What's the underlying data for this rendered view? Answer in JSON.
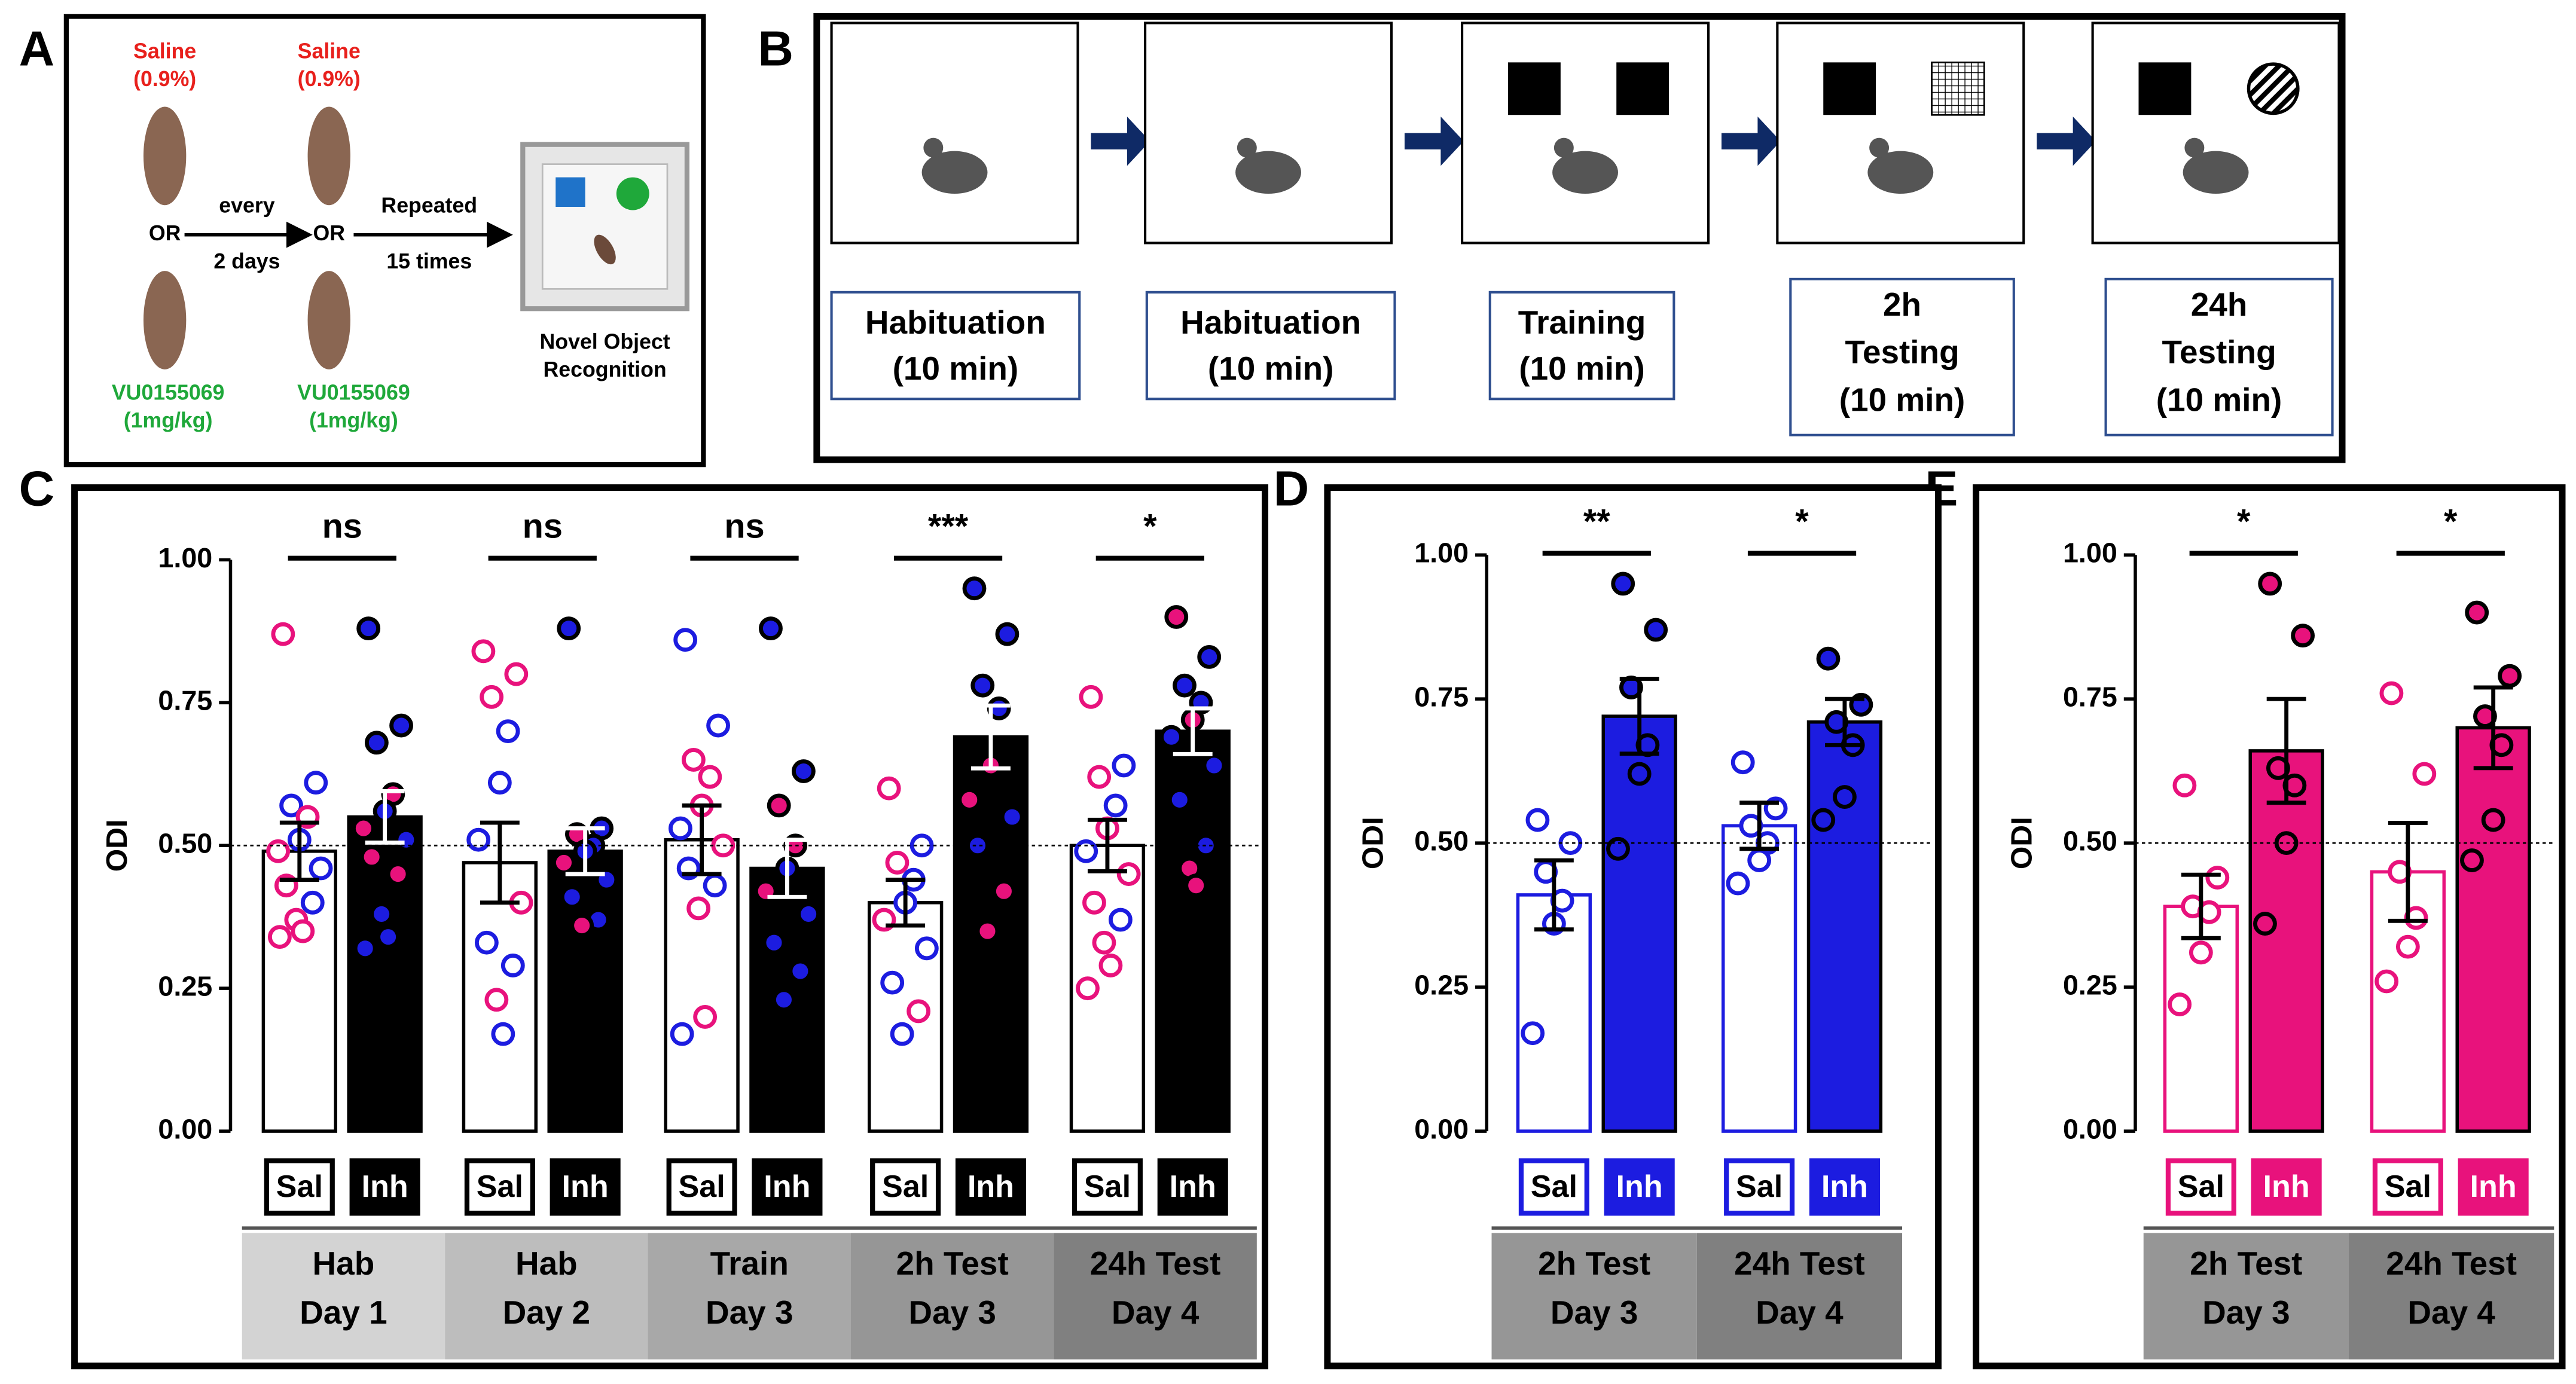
{
  "panel_labels": [
    "A",
    "B",
    "C",
    "D",
    "E"
  ],
  "panel_a": {
    "saline": "Saline",
    "saline_dose": "(0.9%)",
    "or": "OR",
    "every": "every",
    "days": "2 days",
    "repeated": "Repeated",
    "times": "15 times",
    "drug": "VU0155069",
    "drug_dose": "(1mg/kg)",
    "task": [
      "Novel Object",
      "Recognition"
    ]
  },
  "panel_b": {
    "screens": [
      {
        "lines": [
          "Habituation",
          "(10 min)"
        ]
      },
      {
        "lines": [
          "Habituation",
          "(10 min)"
        ]
      },
      {
        "lines": [
          "Training",
          "(10 min)"
        ]
      },
      {
        "lines": [
          "2h",
          "Testing",
          "(10 min)"
        ]
      },
      {
        "lines": [
          "24h",
          "Testing",
          "(10 min)"
        ]
      }
    ]
  },
  "chart_data": [
    {
      "type": "bar",
      "ylabel": "ODI",
      "categories": [
        [
          "Hab",
          "Day 1"
        ],
        [
          "Hab",
          "Day 2"
        ],
        [
          "Train",
          "Day 3"
        ],
        [
          "2h Test",
          "Day 3"
        ],
        [
          "24h Test",
          "Day 4"
        ]
      ],
      "annotations": [
        "ns",
        "ns",
        "ns",
        "***",
        "*"
      ],
      "reference_line": 0.5,
      "ylim": [
        0,
        1
      ],
      "yticks": [
        {
          "value": 0,
          "label": "0.00"
        },
        {
          "value": 0.25,
          "label": "0.25"
        },
        {
          "value": 0.5,
          "label": "0.50"
        },
        {
          "value": 0.75,
          "label": "0.75"
        },
        {
          "value": 1,
          "label": "1.00"
        }
      ],
      "series": [
        {
          "name": "Sal",
          "color": "#ffffff",
          "edge_color": "#000000",
          "values": [
            0.49,
            0.47,
            0.51,
            0.4,
            0.5
          ],
          "errors": [
            0.05,
            0.07,
            0.06,
            0.04,
            0.045
          ],
          "points": [
            [
              0.87,
              0.61,
              0.57,
              0.55,
              0.51,
              0.49,
              0.46,
              0.43,
              0.4,
              0.37,
              0.35,
              0.34
            ],
            [
              0.84,
              0.8,
              0.76,
              0.7,
              0.61,
              0.51,
              0.4,
              0.33,
              0.29,
              0.23,
              0.17
            ],
            [
              0.86,
              0.71,
              0.65,
              0.62,
              0.57,
              0.53,
              0.5,
              0.46,
              0.43,
              0.39,
              0.2,
              0.17
            ],
            [
              0.6,
              0.5,
              0.47,
              0.44,
              0.4,
              0.37,
              0.32,
              0.26,
              0.21,
              0.17
            ],
            [
              0.76,
              0.64,
              0.62,
              0.57,
              0.53,
              0.49,
              0.45,
              0.4,
              0.37,
              0.33,
              0.29,
              0.25
            ]
          ],
          "point_colors": [
            [
              "#e8127c",
              "#1c1ce0",
              "#1c1ce0",
              "#e8127c",
              "#1c1ce0",
              "#e8127c",
              "#1c1ce0",
              "#e8127c",
              "#1c1ce0",
              "#e8127c",
              "#e8127c",
              "#e8127c"
            ],
            [
              "#e8127c",
              "#e8127c",
              "#e8127c",
              "#1c1ce0",
              "#1c1ce0",
              "#1c1ce0",
              "#e8127c",
              "#1c1ce0",
              "#1c1ce0",
              "#e8127c",
              "#1c1ce0"
            ],
            [
              "#1c1ce0",
              "#1c1ce0",
              "#e8127c",
              "#e8127c",
              "#e8127c",
              "#1c1ce0",
              "#e8127c",
              "#1c1ce0",
              "#1c1ce0",
              "#e8127c",
              "#e8127c",
              "#1c1ce0"
            ],
            [
              "#e8127c",
              "#1c1ce0",
              "#e8127c",
              "#1c1ce0",
              "#1c1ce0",
              "#e8127c",
              "#1c1ce0",
              "#1c1ce0",
              "#e8127c",
              "#1c1ce0"
            ],
            [
              "#e8127c",
              "#1c1ce0",
              "#e8127c",
              "#1c1ce0",
              "#e8127c",
              "#1c1ce0",
              "#e8127c",
              "#e8127c",
              "#1c1ce0",
              "#e8127c",
              "#e8127c",
              "#e8127c"
            ]
          ]
        },
        {
          "name": "Inh",
          "color": "#000000",
          "edge_color": "#000000",
          "values": [
            0.55,
            0.49,
            0.46,
            0.69,
            0.7
          ],
          "errors": [
            0.045,
            0.04,
            0.05,
            0.055,
            0.04
          ],
          "points": [
            [
              0.88,
              0.71,
              0.68,
              0.59,
              0.56,
              0.53,
              0.51,
              0.48,
              0.45,
              0.38,
              0.34,
              0.32
            ],
            [
              0.88,
              0.53,
              0.52,
              0.5,
              0.49,
              0.47,
              0.44,
              0.41,
              0.37,
              0.36
            ],
            [
              0.88,
              0.63,
              0.57,
              0.5,
              0.46,
              0.42,
              0.38,
              0.33,
              0.28,
              0.23
            ],
            [
              0.95,
              0.87,
              0.78,
              0.74,
              0.64,
              0.58,
              0.55,
              0.5,
              0.42,
              0.35
            ],
            [
              0.9,
              0.83,
              0.78,
              0.75,
              0.72,
              0.69,
              0.64,
              0.58,
              0.5,
              0.46,
              0.43
            ]
          ],
          "point_colors": [
            [
              "#1c1ce0",
              "#1c1ce0",
              "#1c1ce0",
              "#e8127c",
              "#1c1ce0",
              "#e8127c",
              "#1c1ce0",
              "#e8127c",
              "#e8127c",
              "#1c1ce0",
              "#1c1ce0",
              "#1c1ce0"
            ],
            [
              "#1c1ce0",
              "#1c1ce0",
              "#e8127c",
              "#1c1ce0",
              "#1c1ce0",
              "#e8127c",
              "#1c1ce0",
              "#1c1ce0",
              "#1c1ce0",
              "#e8127c"
            ],
            [
              "#1c1ce0",
              "#1c1ce0",
              "#e8127c",
              "#e8127c",
              "#1c1ce0",
              "#e8127c",
              "#1c1ce0",
              "#1c1ce0",
              "#1c1ce0",
              "#1c1ce0"
            ],
            [
              "#1c1ce0",
              "#1c1ce0",
              "#1c1ce0",
              "#1c1ce0",
              "#e8127c",
              "#e8127c",
              "#1c1ce0",
              "#1c1ce0",
              "#e8127c",
              "#e8127c"
            ],
            [
              "#e8127c",
              "#1c1ce0",
              "#1c1ce0",
              "#1c1ce0",
              "#e8127c",
              "#1c1ce0",
              "#1c1ce0",
              "#1c1ce0",
              "#1c1ce0",
              "#e8127c",
              "#e8127c"
            ]
          ]
        }
      ]
    },
    {
      "type": "bar",
      "ylabel": "ODI",
      "categories": [
        [
          "2h Test",
          "Day 3"
        ],
        [
          "24h Test",
          "Day 4"
        ]
      ],
      "annotations": [
        "**",
        "*"
      ],
      "reference_line": 0.5,
      "ylim": [
        0,
        1
      ],
      "yticks": [
        {
          "value": 0,
          "label": "0.00"
        },
        {
          "value": 0.25,
          "label": "0.25"
        },
        {
          "value": 0.5,
          "label": "0.50"
        },
        {
          "value": 0.75,
          "label": "0.75"
        },
        {
          "value": 1,
          "label": "1.00"
        }
      ],
      "series": [
        {
          "name": "Sal",
          "color": "#ffffff",
          "edge_color": "#1c1ce0",
          "point_color": "#1c1ce0",
          "values": [
            0.41,
            0.53
          ],
          "errors": [
            0.06,
            0.04
          ],
          "points": [
            [
              0.54,
              0.5,
              0.45,
              0.4,
              0.36,
              0.17
            ],
            [
              0.64,
              0.56,
              0.53,
              0.5,
              0.47,
              0.43
            ]
          ]
        },
        {
          "name": "Inh",
          "color": "#1c1ce0",
          "edge_color": "#000000",
          "point_color": "#1c1ce0",
          "values": [
            0.72,
            0.71
          ],
          "errors": [
            0.065,
            0.04
          ],
          "points": [
            [
              0.95,
              0.87,
              0.77,
              0.67,
              0.62,
              0.49
            ],
            [
              0.82,
              0.74,
              0.71,
              0.67,
              0.58,
              0.54
            ]
          ]
        }
      ]
    },
    {
      "type": "bar",
      "ylabel": "ODI",
      "categories": [
        [
          "2h Test",
          "Day 3"
        ],
        [
          "24h Test",
          "Day 4"
        ]
      ],
      "annotations": [
        "*",
        "*"
      ],
      "reference_line": 0.5,
      "ylim": [
        0,
        1
      ],
      "yticks": [
        {
          "value": 0,
          "label": "0.00"
        },
        {
          "value": 0.25,
          "label": "0.25"
        },
        {
          "value": 0.5,
          "label": "0.50"
        },
        {
          "value": 0.75,
          "label": "0.75"
        },
        {
          "value": 1,
          "label": "1.00"
        }
      ],
      "series": [
        {
          "name": "Sal",
          "color": "#ffffff",
          "edge_color": "#e8127c",
          "point_color": "#e8127c",
          "values": [
            0.39,
            0.45
          ],
          "errors": [
            0.055,
            0.085
          ],
          "points": [
            [
              0.6,
              0.44,
              0.39,
              0.38,
              0.31,
              0.22
            ],
            [
              0.76,
              0.62,
              0.45,
              0.37,
              0.32,
              0.26
            ]
          ]
        },
        {
          "name": "Inh",
          "color": "#e8127c",
          "edge_color": "#000000",
          "point_color": "#e8127c",
          "values": [
            0.66,
            0.7
          ],
          "errors": [
            0.09,
            0.07
          ],
          "points": [
            [
              0.95,
              0.86,
              0.63,
              0.6,
              0.5,
              0.36
            ],
            [
              0.9,
              0.79,
              0.72,
              0.67,
              0.54,
              0.47
            ]
          ]
        }
      ]
    }
  ]
}
